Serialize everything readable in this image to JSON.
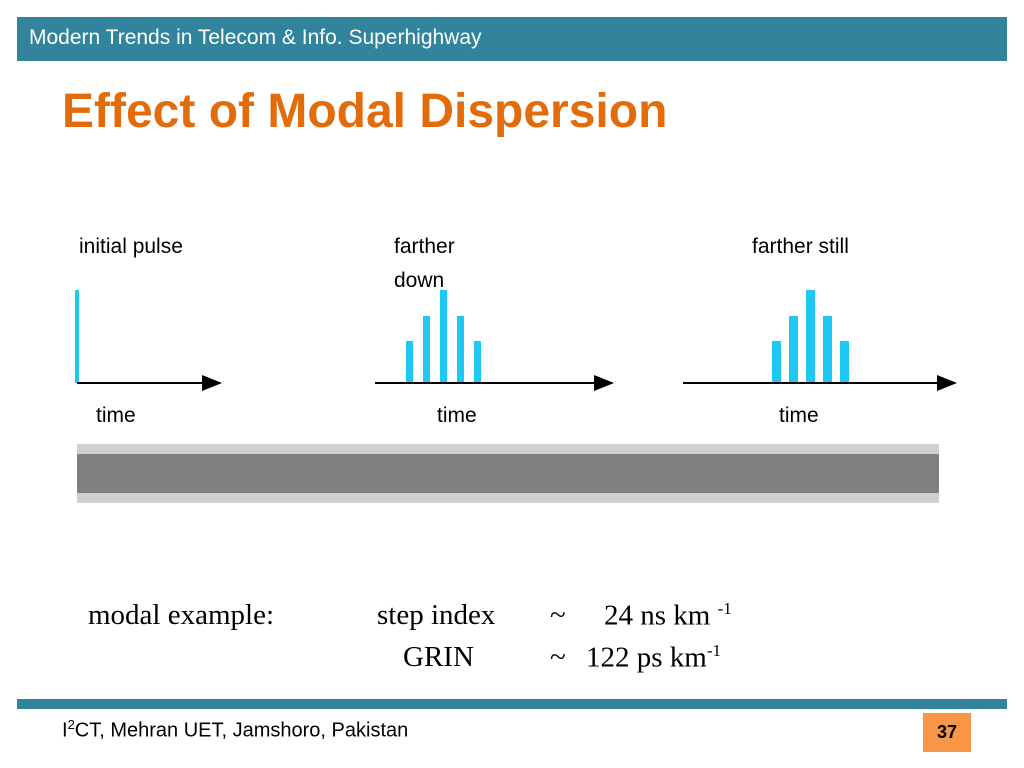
{
  "header": {
    "text": "Modern Trends in Telecom & Info. Superhighway",
    "color": "#31849b"
  },
  "title": {
    "text": "Effect of Modal Dispersion",
    "color": "#e36c0a"
  },
  "diagram": {
    "pulse_color": "#1ec8f5",
    "panels": [
      {
        "label": "initial pulse",
        "axis_label": "time",
        "pulse": "single"
      },
      {
        "label": "farther down",
        "axis_label": "time",
        "pulse": "spread"
      },
      {
        "label": "farther still",
        "axis_label": "time",
        "pulse": "spread"
      }
    ]
  },
  "example": {
    "label": "modal example:",
    "rows": [
      {
        "type": "step index",
        "tilde": "~",
        "value": "24 ns km",
        "exp": "-1"
      },
      {
        "type": "GRIN",
        "tilde": "~",
        "value": "122 ps km",
        "exp": "-1"
      }
    ]
  },
  "footer": {
    "text_pre": "I",
    "text_sup": "2",
    "text_post": "CT, Mehran UET, Jamshoro, Pakistan",
    "page": "37",
    "page_color": "#f79646"
  }
}
